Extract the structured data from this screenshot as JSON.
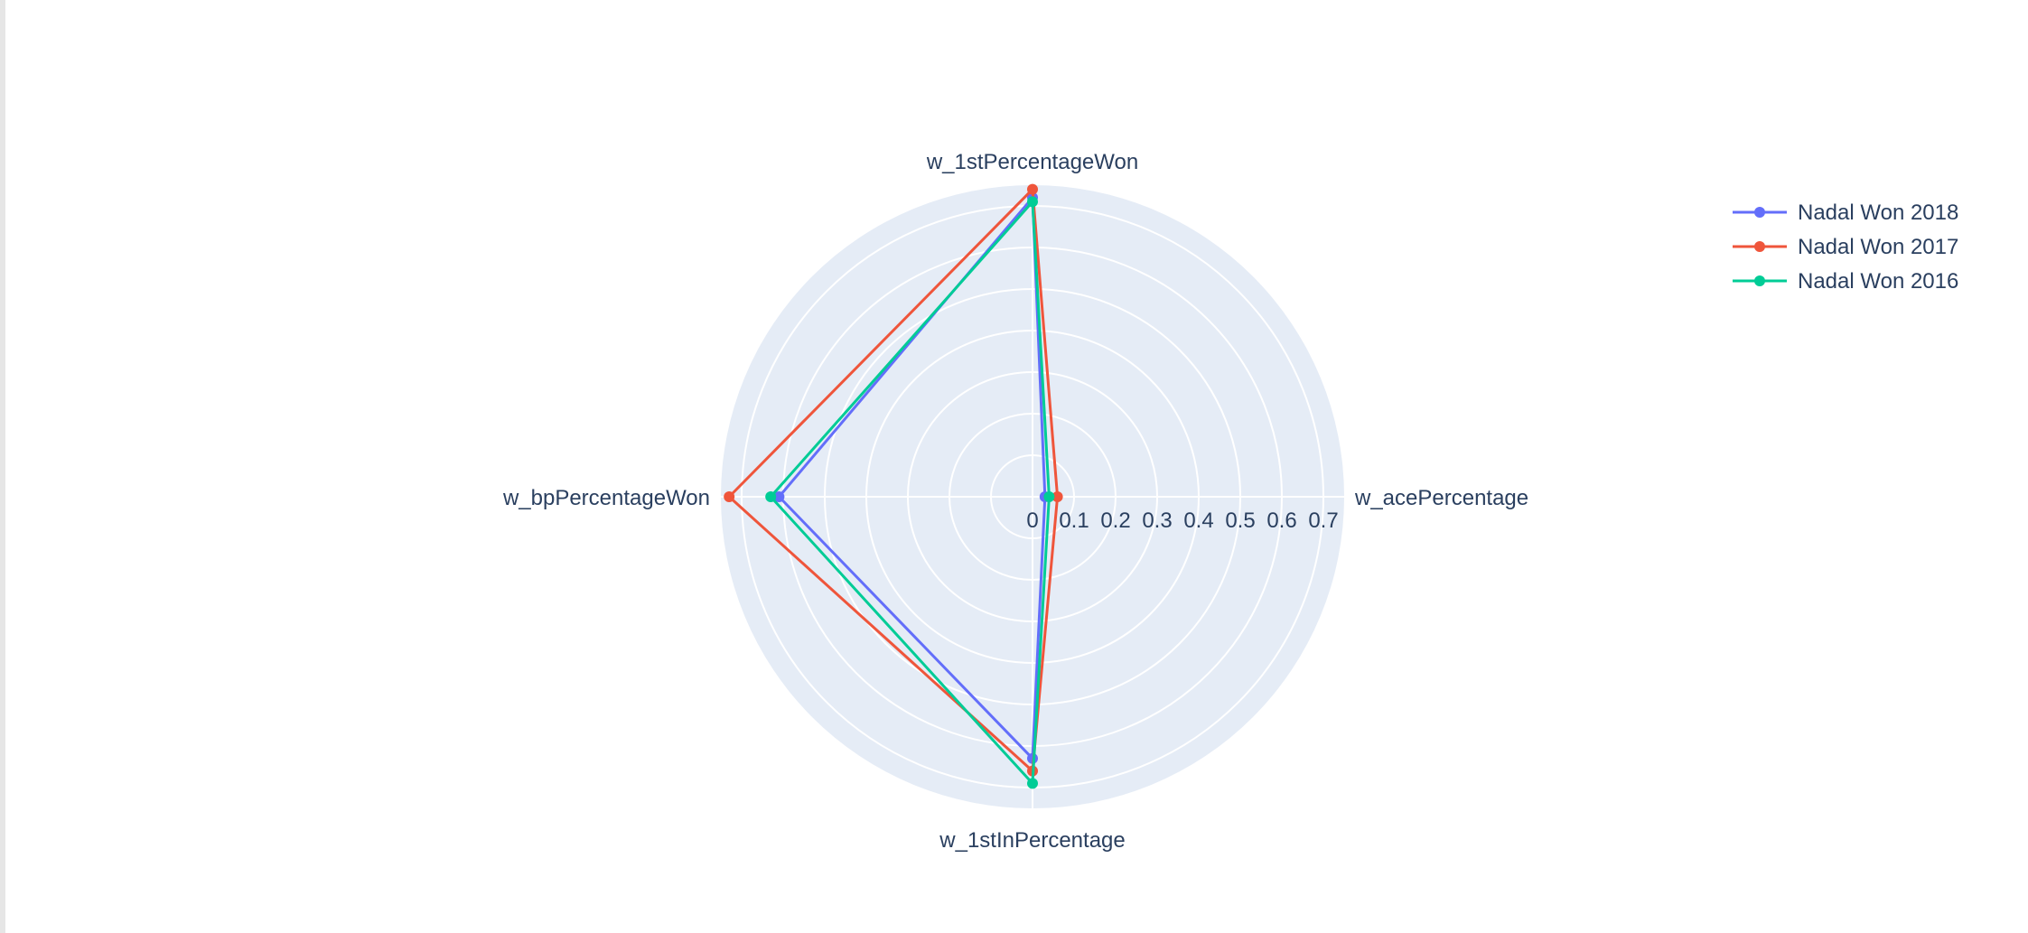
{
  "chart_data": {
    "type": "radar",
    "title": "",
    "categories": [
      "w_acePercentage",
      "w_1stPercentageWon",
      "w_bpPercentageWon",
      "w_1stInPercentage"
    ],
    "radial_axis": {
      "range": [
        0,
        0.75
      ],
      "ticks": [
        0,
        0.1,
        0.2,
        0.3,
        0.4,
        0.5,
        0.6,
        0.7
      ],
      "tick_labels": [
        "0",
        "0.1",
        "0.2",
        "0.3",
        "0.4",
        "0.5",
        "0.6",
        "0.7"
      ],
      "grid": true
    },
    "legend": {
      "placement": "top-right"
    },
    "series": [
      {
        "name": "Nadal Won 2018",
        "color": "#636efa",
        "values": [
          0.03,
          0.72,
          0.61,
          0.63
        ]
      },
      {
        "name": "Nadal Won 2017",
        "color": "#ef553b",
        "values": [
          0.06,
          0.74,
          0.73,
          0.66
        ]
      },
      {
        "name": "Nadal Won 2016",
        "color": "#00cc96",
        "values": [
          0.04,
          0.71,
          0.63,
          0.69
        ]
      }
    ],
    "background_color": "#e5ecf6",
    "grid_color": "#ffffff",
    "text_color": "#2a3f5f"
  }
}
